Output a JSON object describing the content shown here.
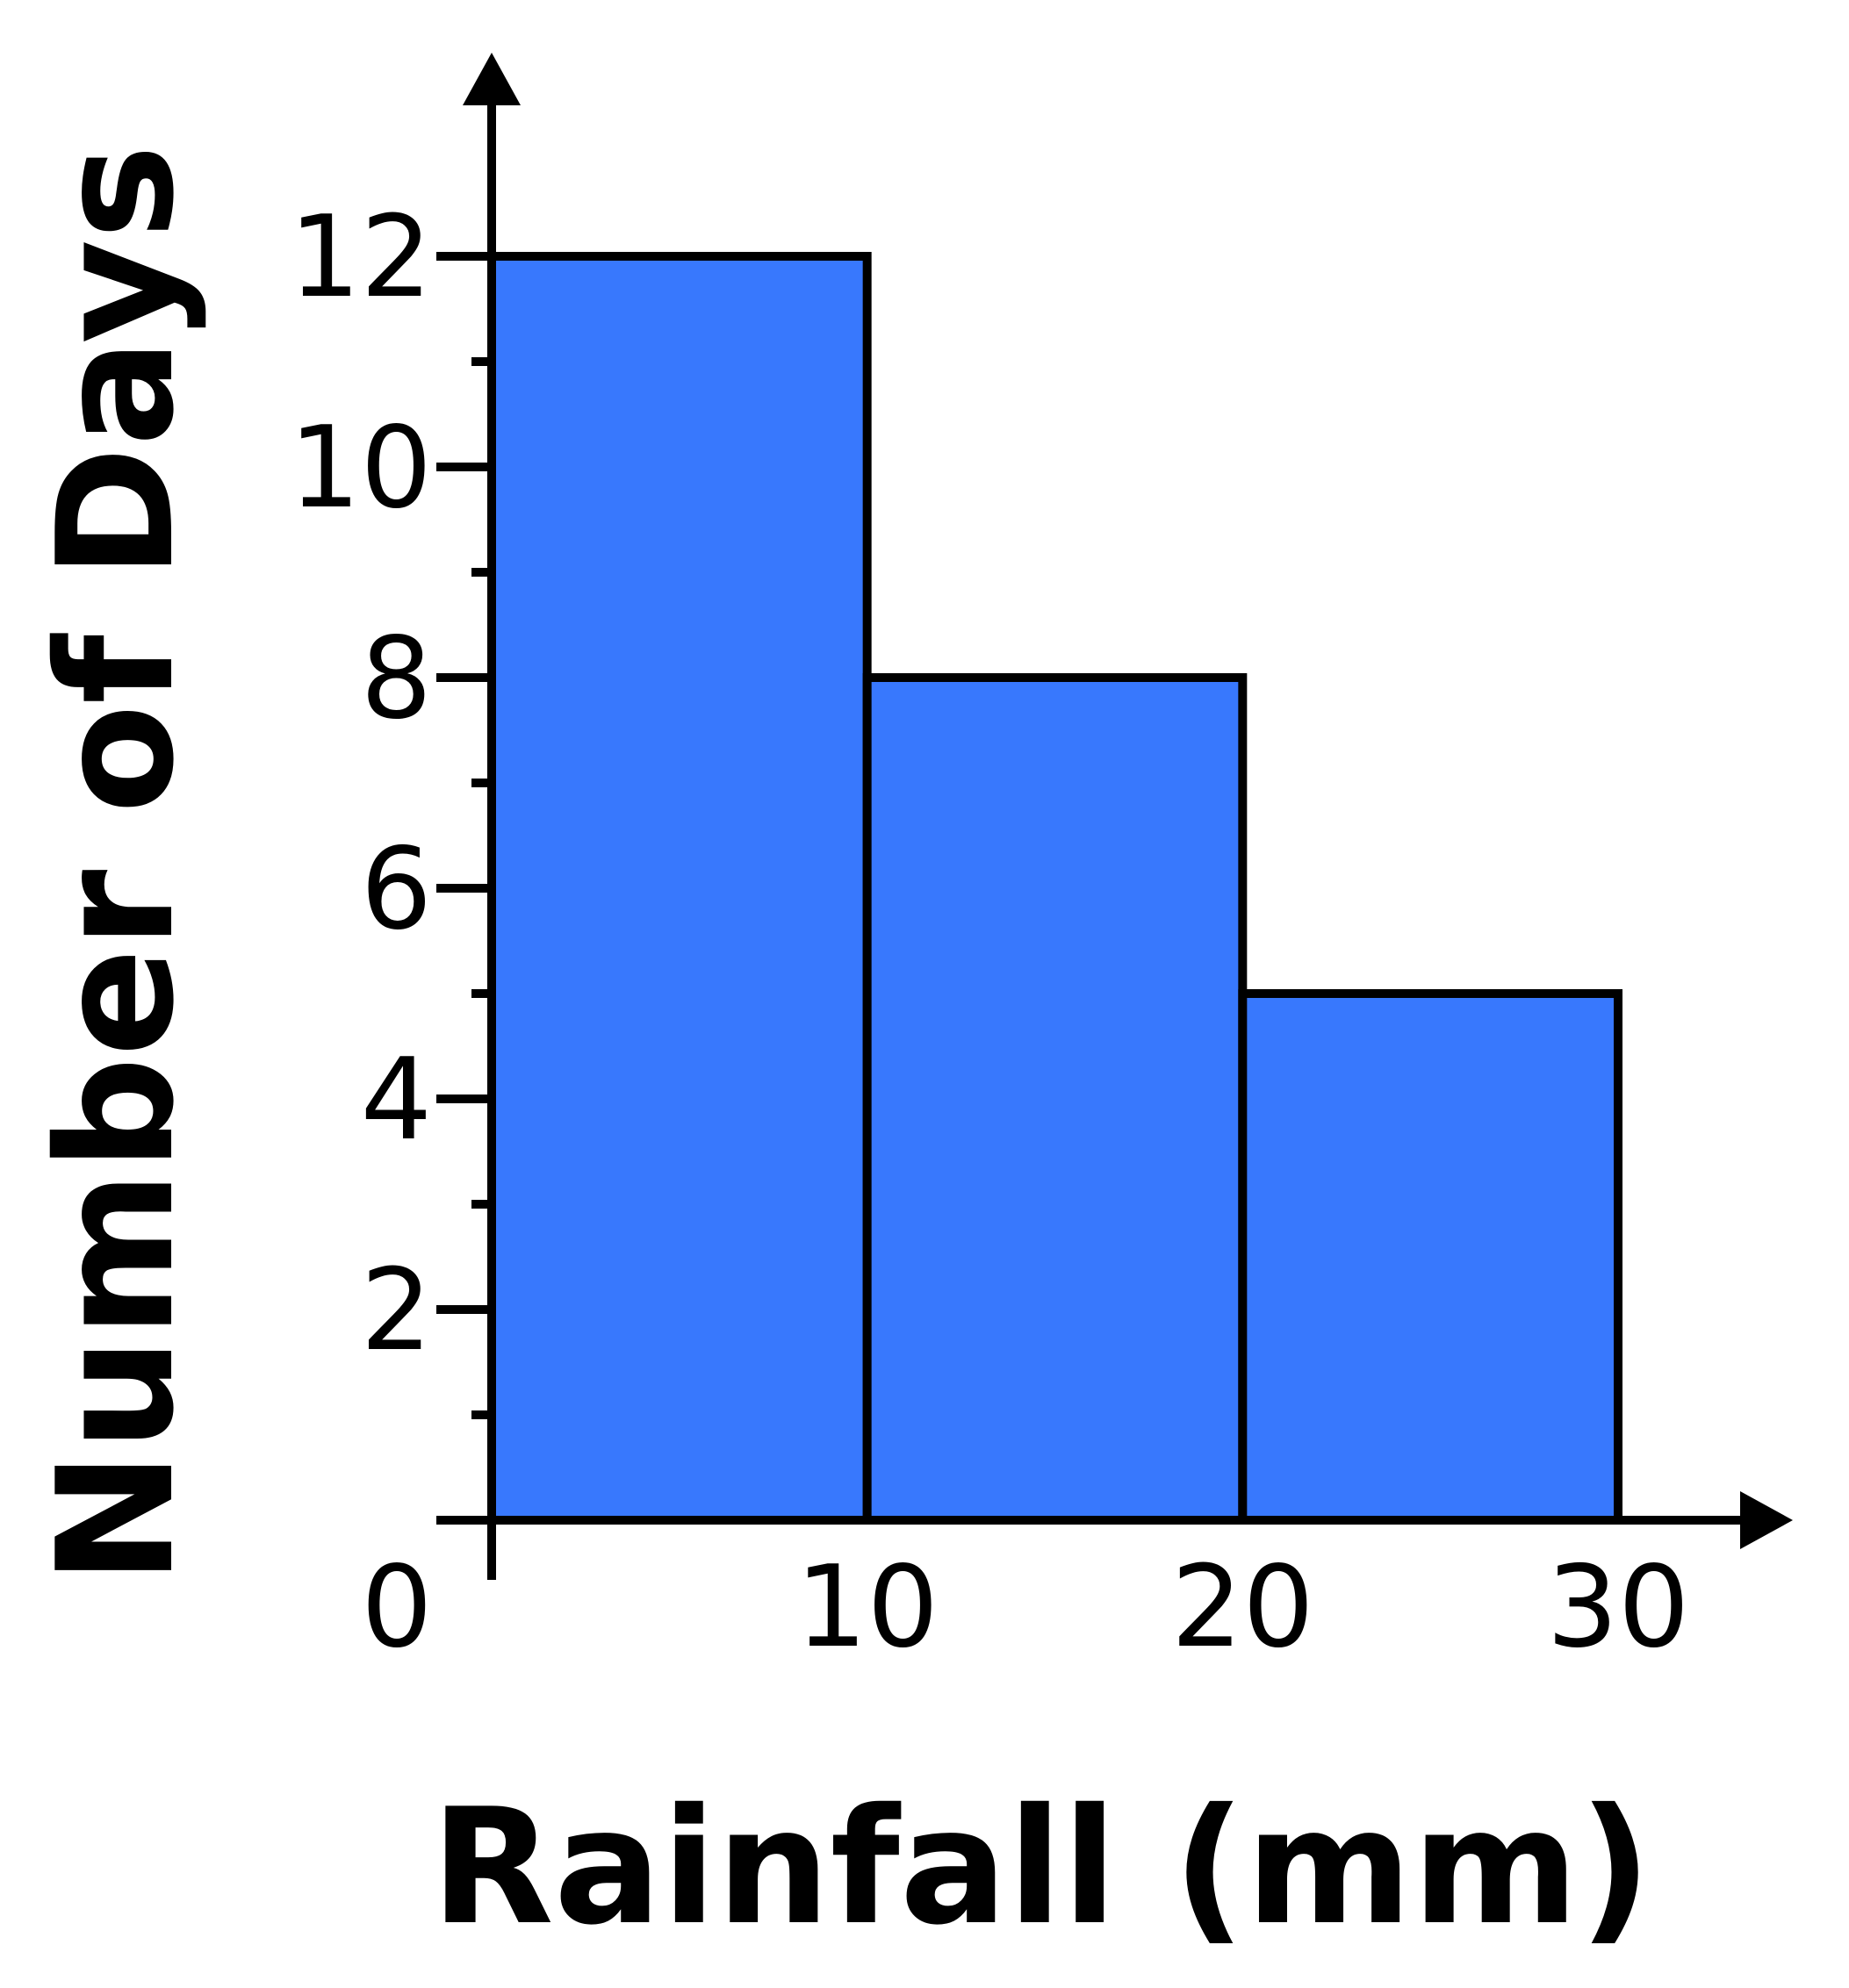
{
  "chart_data": {
    "type": "bar",
    "subtype": "histogram",
    "title": "",
    "xlabel": "Rainfall (mm)",
    "ylabel": "Number of Days",
    "bins": [
      {
        "from": 0,
        "to": 10,
        "value": 12
      },
      {
        "from": 10,
        "to": 20,
        "value": 8
      },
      {
        "from": 20,
        "to": 30,
        "value": 5
      }
    ],
    "xlim": [
      0,
      30
    ],
    "ylim": [
      0,
      12
    ],
    "x_ticks": [
      10,
      20,
      30
    ],
    "y_ticks": [
      2,
      4,
      6,
      8,
      10,
      12
    ],
    "y_minor_ticks": [
      1,
      3,
      5,
      7,
      9,
      11
    ],
    "origin_label": "0",
    "grid": false,
    "legend": "none",
    "colors": {
      "bar_fill": "#3878FD",
      "bar_stroke": "#000000",
      "axis": "#000000"
    }
  }
}
